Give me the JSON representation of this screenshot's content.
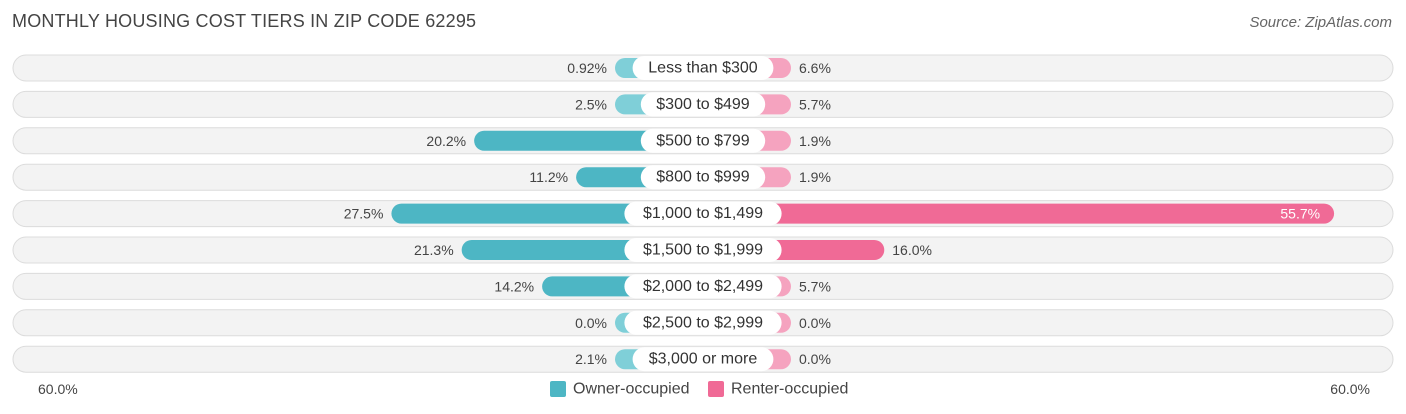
{
  "header": {
    "title": "MONTHLY HOUSING COST TIERS IN ZIP CODE 62295",
    "source": "Source: ZipAtlas.com"
  },
  "chart_data": {
    "type": "bar",
    "orientation": "diverging-horizontal",
    "categories": [
      "Less than $300",
      "$300 to $499",
      "$500 to $799",
      "$800 to $999",
      "$1,000 to $1,499",
      "$1,500 to $1,999",
      "$2,000 to $2,499",
      "$2,500 to $2,999",
      "$3,000 or more"
    ],
    "series": [
      {
        "name": "Owner-occupied",
        "side": "left",
        "values": [
          0.92,
          2.5,
          20.2,
          11.2,
          27.5,
          21.3,
          14.2,
          0.0,
          2.1
        ],
        "labels": [
          "0.92%",
          "2.5%",
          "20.2%",
          "11.2%",
          "27.5%",
          "21.3%",
          "14.2%",
          "0.0%",
          "2.1%"
        ],
        "color": "#4db6c4",
        "light_color": "#7fcfd8"
      },
      {
        "name": "Renter-occupied",
        "side": "right",
        "values": [
          6.6,
          5.7,
          1.9,
          1.9,
          55.7,
          16.0,
          5.7,
          0.0,
          0.0
        ],
        "labels": [
          "6.6%",
          "5.7%",
          "1.9%",
          "1.9%",
          "55.7%",
          "16.0%",
          "5.7%",
          "0.0%",
          "0.0%"
        ],
        "color": "#f06a96",
        "light_color": "#f5a3bf"
      }
    ],
    "axis": {
      "max": 60.0,
      "left_label": "60.0%",
      "right_label": "60.0%"
    },
    "legend_position": "bottom-center",
    "grid": false
  }
}
